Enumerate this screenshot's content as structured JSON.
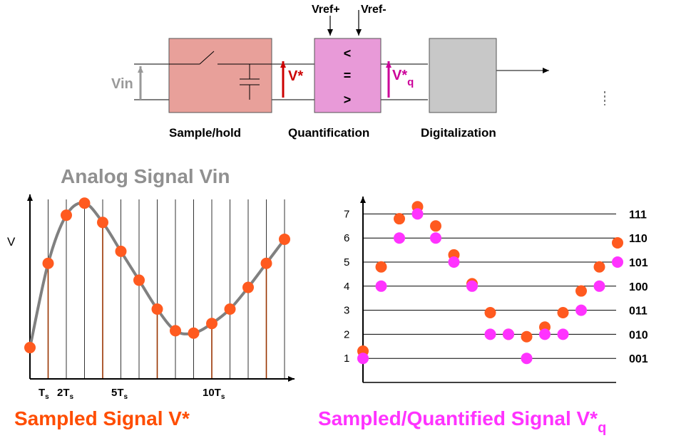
{
  "block_diagram": {
    "vin": "Vin",
    "vref_plus": "Vref+",
    "vref_minus": "Vref-",
    "v_star": "V*",
    "v_star_q": "V*",
    "v_star_q_sub": "q",
    "cmp_lt": "<",
    "cmp_eq": "=",
    "cmp_gt": ">",
    "label_sample": "Sample/hold",
    "label_quant": "Quantification",
    "label_digital": "Digitalization",
    "colors": {
      "sample": "#e8a09a",
      "quant": "#e89ad8",
      "digital": "#c8c8c8",
      "red": "#cc0000",
      "magenta": "#cc0099",
      "arrow_gray": "#999999"
    }
  },
  "left_chart": {
    "title": "Analog Signal Vin",
    "ylabel": "V",
    "xticks": [
      {
        "main": "T",
        "sub": "s"
      },
      {
        "main": "2T",
        "sub": "s"
      },
      {
        "main": "5T",
        "sub": "s"
      },
      {
        "main": "10T",
        "sub": "s"
      }
    ],
    "caption": "Sampled Signal V*",
    "colors": {
      "curve": "#808080",
      "sample": "#ff5a1f",
      "stem": "#993300",
      "title": "#909090",
      "caption": "#ff4d00"
    }
  },
  "right_chart": {
    "caption_main": "Sampled/Quantified Signal V*",
    "caption_sub": "q",
    "yticks": [
      "1",
      "2",
      "3",
      "4",
      "5",
      "6",
      "7"
    ],
    "codes": [
      "001",
      "010",
      "011",
      "100",
      "101",
      "110",
      "111"
    ],
    "colors": {
      "sample": "#ff5a1f",
      "quant": "#ff33ff",
      "caption": "#ff33ff"
    }
  },
  "chart_data": [
    {
      "type": "line",
      "title": "Analog Signal Vin",
      "ylabel": "V",
      "xlabel": "",
      "x_tick_labels": [
        "Ts",
        "2Ts",
        "5Ts",
        "10Ts"
      ],
      "series": [
        {
          "values": [
            1.3,
            4.8,
            6.8,
            7.3,
            6.5,
            5.3,
            4.1,
            2.9,
            2.0,
            1.9,
            2.3,
            2.9,
            3.8,
            4.8,
            5.8
          ]
        }
      ]
    },
    {
      "type": "scatter",
      "title": "Sampled/Quantified Signal V*q",
      "ylim": [
        1,
        7
      ],
      "y_tick_labels": [
        "1",
        "2",
        "3",
        "4",
        "5",
        "6",
        "7"
      ],
      "right_tick_labels": [
        "001",
        "010",
        "011",
        "100",
        "101",
        "110",
        "111"
      ],
      "series": [
        {
          "values": [
            1.3,
            4.8,
            6.8,
            7.3,
            6.5,
            5.3,
            4.1,
            2.9,
            2.0,
            1.9,
            2.3,
            2.9,
            3.8,
            4.8,
            5.8
          ]
        },
        {
          "values": [
            1,
            4,
            6,
            7,
            6,
            5,
            4,
            2,
            2,
            1,
            2,
            2,
            3,
            4,
            5
          ]
        }
      ]
    }
  ]
}
